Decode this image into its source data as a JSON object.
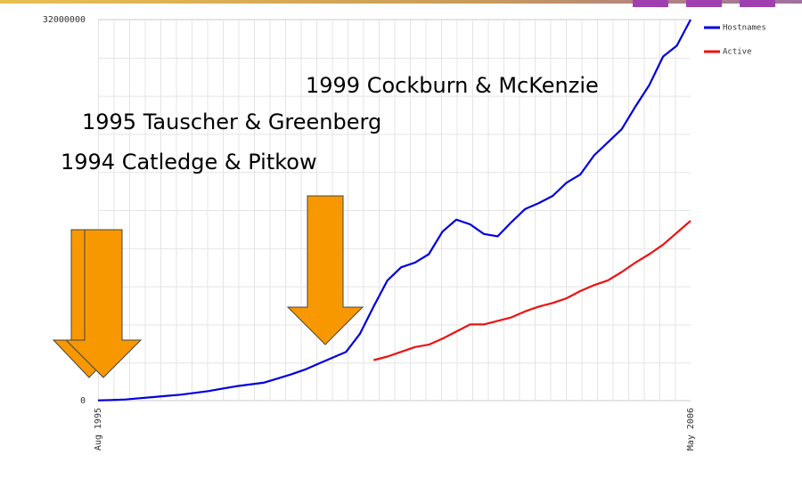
{
  "chart_data": {
    "type": "line",
    "categories": [
      "Aug 1995",
      null,
      null,
      null,
      null,
      null,
      null,
      null,
      null,
      null,
      null,
      null,
      null,
      null,
      null,
      null,
      null,
      null,
      null,
      null,
      null,
      null,
      null,
      null,
      null,
      null,
      null,
      null,
      null,
      null,
      null,
      null,
      null,
      null,
      null,
      null,
      null,
      null,
      null,
      null,
      null,
      null,
      null,
      "May 2006"
    ],
    "series": [
      {
        "name": "Hostnames",
        "color": "#0000dd",
        "values": [
          20000.0,
          50000.0,
          100000.0,
          200000.0,
          300000.0,
          400000.0,
          500000.0,
          650000.0,
          800000.0,
          1000000.0,
          1200000.0,
          1350000.0,
          1500000.0,
          1850000.0,
          2200000.0,
          2600000.0,
          3100000.0,
          3600000.0,
          4100000.0,
          5600000.0,
          7900000.0,
          10100000.0,
          11200000.0,
          11600000.0,
          12300000.0,
          14200000.0,
          15200000.0,
          14800000.0,
          14000000.0,
          13800000.0,
          15000000.0,
          16100000.0,
          16600000.0,
          17200000.0,
          18300000.0,
          19000000.0,
          20600000.0,
          21700000.0,
          22800000.0,
          24700000.0,
          26500000.0,
          28900000.0,
          29800000.0,
          32000000.0
        ]
      },
      {
        "name": "Active",
        "color": "#ee1111",
        "values": [
          null,
          null,
          null,
          null,
          null,
          null,
          null,
          null,
          null,
          null,
          null,
          null,
          null,
          null,
          null,
          null,
          null,
          null,
          null,
          null,
          3400000.0,
          3700000.0,
          4100000.0,
          4500000.0,
          4700000.0,
          5200000.0,
          5800000.0,
          6400000.0,
          6400000.0,
          6700000.0,
          7000000.0,
          7500000.0,
          7900000.0,
          8200000.0,
          8600000.0,
          9200000.0,
          9700000.0,
          10100000.0,
          10800000.0,
          11600000.0,
          12300000.0,
          13100000.0,
          14100000.0,
          15100000.0
        ]
      }
    ],
    "ylim": [
      0,
      32000000
    ],
    "yticks": [
      0,
      32000000
    ],
    "legend": "top-right",
    "annotations": [
      "1999 Cockburn & McKenzie",
      "1995 Tauscher & Greenberg",
      "1994 Catledge & Pitkow"
    ]
  }
}
